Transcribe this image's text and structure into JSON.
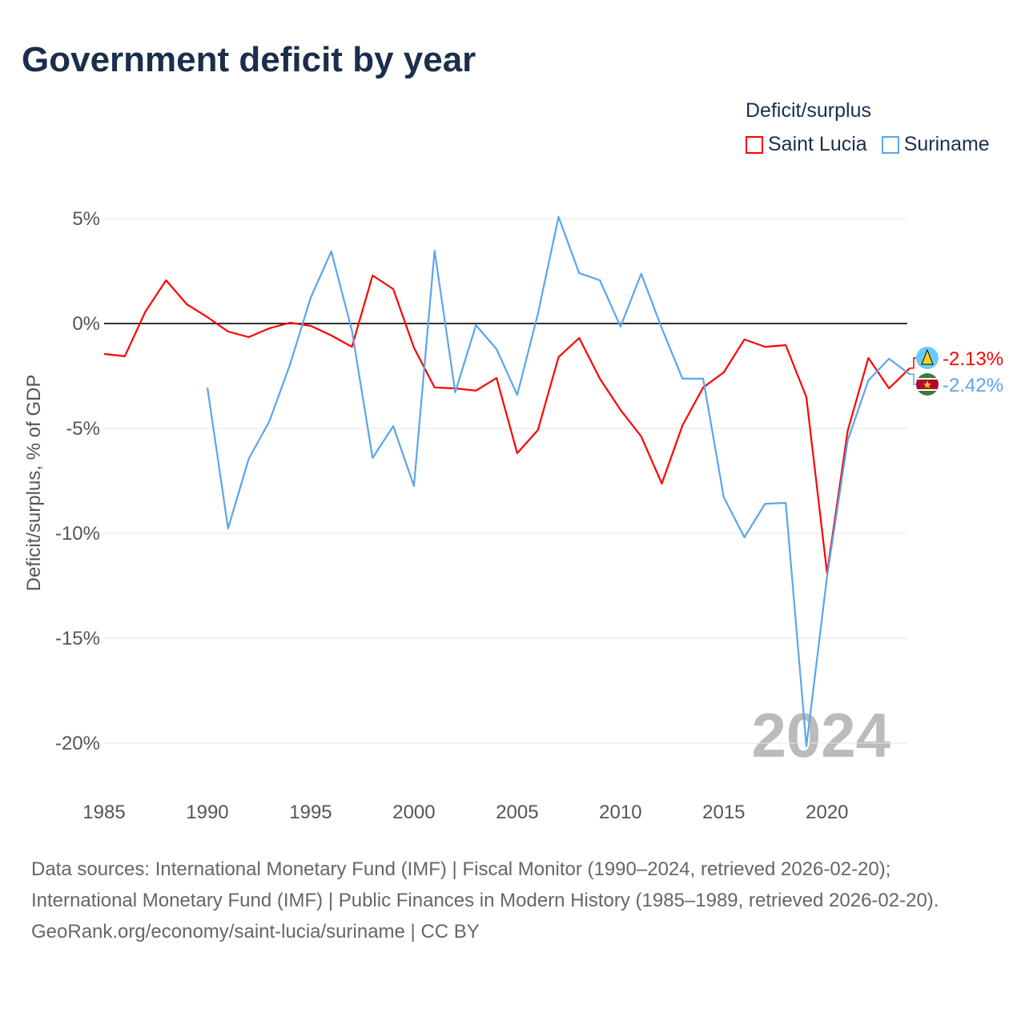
{
  "title": "Government deficit by year",
  "legend": {
    "title": "Deficit/surplus",
    "items": [
      {
        "label": "Saint Lucia",
        "color": "#ff0000"
      },
      {
        "label": "Suriname",
        "color": "#5aa5ec"
      }
    ]
  },
  "chart_data": {
    "type": "line",
    "title": "Government deficit by year",
    "xlabel": "",
    "ylabel": "Deficit/surplus, % of GDP",
    "xlim": [
      1985,
      2024
    ],
    "ylim": [
      -20,
      5
    ],
    "x_ticks": [
      1985,
      1990,
      1995,
      2000,
      2005,
      2010,
      2015,
      2020
    ],
    "x_tick_labels": [
      "1985",
      "1990",
      "1995",
      "2000",
      "2005",
      "2010",
      "2015",
      "2020"
    ],
    "y_ticks": [
      5,
      0,
      -5,
      -10,
      -15,
      -20
    ],
    "y_tick_labels": [
      "5%",
      "0%",
      "-5%",
      "-10%",
      "-15%",
      "-20%"
    ],
    "year_watermark": "2024",
    "series": [
      {
        "name": "Saint Lucia",
        "color": "#ff0000",
        "end_label": "-2.13%",
        "start_year": 1985,
        "values": [
          -1.45,
          -1.56,
          0.57,
          2.06,
          0.92,
          0.3,
          -0.38,
          -0.65,
          -0.23,
          0.04,
          -0.11,
          -0.57,
          -1.11,
          2.29,
          1.64,
          -1.15,
          -3.05,
          -3.09,
          -3.2,
          -2.6,
          -6.18,
          -5.08,
          -1.6,
          -0.69,
          -2.63,
          -4.12,
          -5.38,
          -7.63,
          -4.85,
          -3.05,
          -2.33,
          -0.76,
          -1.11,
          -1.03,
          -3.51,
          -11.9,
          -5.11,
          -1.64,
          -3.09,
          -2.13
        ]
      },
      {
        "name": "Suriname",
        "color": "#5aa5ec",
        "end_label": "-2.42%",
        "start_year": 1990,
        "values": [
          -3.05,
          -9.77,
          -6.45,
          -4.66,
          -1.95,
          1.22,
          3.44,
          -0.34,
          -6.41,
          -4.89,
          -7.75,
          3.47,
          -3.28,
          -0.08,
          -1.22,
          -3.4,
          0.46,
          5.08,
          2.4,
          2.06,
          -0.15,
          2.37,
          -0.23,
          -2.63,
          -2.63,
          -8.28,
          -10.19,
          -8.59,
          -8.55,
          -20.15,
          -12.06,
          -5.57,
          -2.71,
          -1.68,
          -2.42
        ]
      }
    ]
  },
  "footer": {
    "sources": "Data sources: International Monetary Fund (IMF) | Fiscal Monitor (1990–2024, retrieved 2026-02-20); International Monetary Fund (IMF) | Public Finances in Modern History (1985–1989, retrieved 2026-02-20).",
    "credit": "GeoRank.org/economy/saint-lucia/suriname | CC BY"
  }
}
